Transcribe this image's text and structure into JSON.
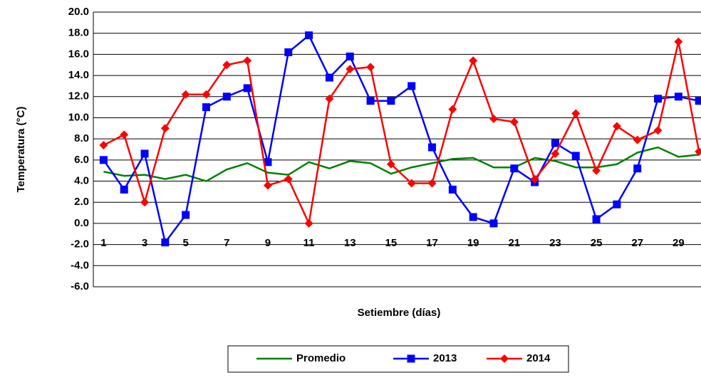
{
  "chart_data": {
    "type": "line",
    "x_label": "Setiembre (días)",
    "y_label": "Temperatura (°C)",
    "categories": [
      1,
      null,
      3,
      null,
      5,
      null,
      7,
      null,
      9,
      null,
      11,
      null,
      13,
      null,
      15,
      null,
      17,
      null,
      19,
      null,
      21,
      null,
      23,
      null,
      25,
      null,
      27,
      null,
      29,
      null
    ],
    "series": [
      {
        "name": "Promedio",
        "color": "#008000",
        "marker": "none",
        "values": [
          4.9,
          4.5,
          4.6,
          4.2,
          4.6,
          4.0,
          5.1,
          5.7,
          4.8,
          4.6,
          5.8,
          5.2,
          5.9,
          5.7,
          4.7,
          5.3,
          5.7,
          6.1,
          6.2,
          5.3,
          5.3,
          6.2,
          5.9,
          5.3,
          5.3,
          5.6,
          6.7,
          7.2,
          6.3,
          6.5
        ]
      },
      {
        "name": "2013",
        "color": "#0000ff",
        "marker": "square",
        "values": [
          6.0,
          3.2,
          6.6,
          -1.8,
          0.8,
          11.0,
          12.0,
          12.8,
          5.8,
          16.2,
          17.8,
          13.8,
          15.8,
          11.6,
          11.6,
          13.0,
          7.2,
          3.2,
          0.6,
          0.0,
          5.2,
          3.9,
          7.6,
          6.4,
          0.4,
          1.8,
          5.2,
          11.8,
          12.0,
          11.6
        ]
      },
      {
        "name": "2014",
        "color": "#ff0000",
        "marker": "diamond",
        "values": [
          7.4,
          8.4,
          2.0,
          9.0,
          12.2,
          12.2,
          15.0,
          15.4,
          3.6,
          4.2,
          0.0,
          11.8,
          14.6,
          14.8,
          5.6,
          3.8,
          3.8,
          10.8,
          15.4,
          9.9,
          9.6,
          4.2,
          6.6,
          10.4,
          5.0,
          9.2,
          7.9,
          8.8,
          17.2,
          6.8
        ]
      }
    ],
    "ylim": [
      -6,
      20
    ],
    "yticks": [
      {
        "value": -6,
        "label": "-6.0"
      },
      {
        "value": -4,
        "label": "-4.0"
      },
      {
        "value": -2,
        "label": "-2.0"
      },
      {
        "value": 0,
        "label": "0.0"
      },
      {
        "value": 2,
        "label": "2.0"
      },
      {
        "value": 4,
        "label": "4.0"
      },
      {
        "value": 6,
        "label": "6.0"
      },
      {
        "value": 8,
        "label": "8.0"
      },
      {
        "value": 10,
        "label": "10.0"
      },
      {
        "value": 12,
        "label": "12.0"
      },
      {
        "value": 14,
        "label": "14.0"
      },
      {
        "value": 16,
        "label": "16.0"
      },
      {
        "value": 18,
        "label": "18.0"
      },
      {
        "value": 20,
        "label": "20.0"
      }
    ],
    "grid": true,
    "legend": "bottom"
  }
}
